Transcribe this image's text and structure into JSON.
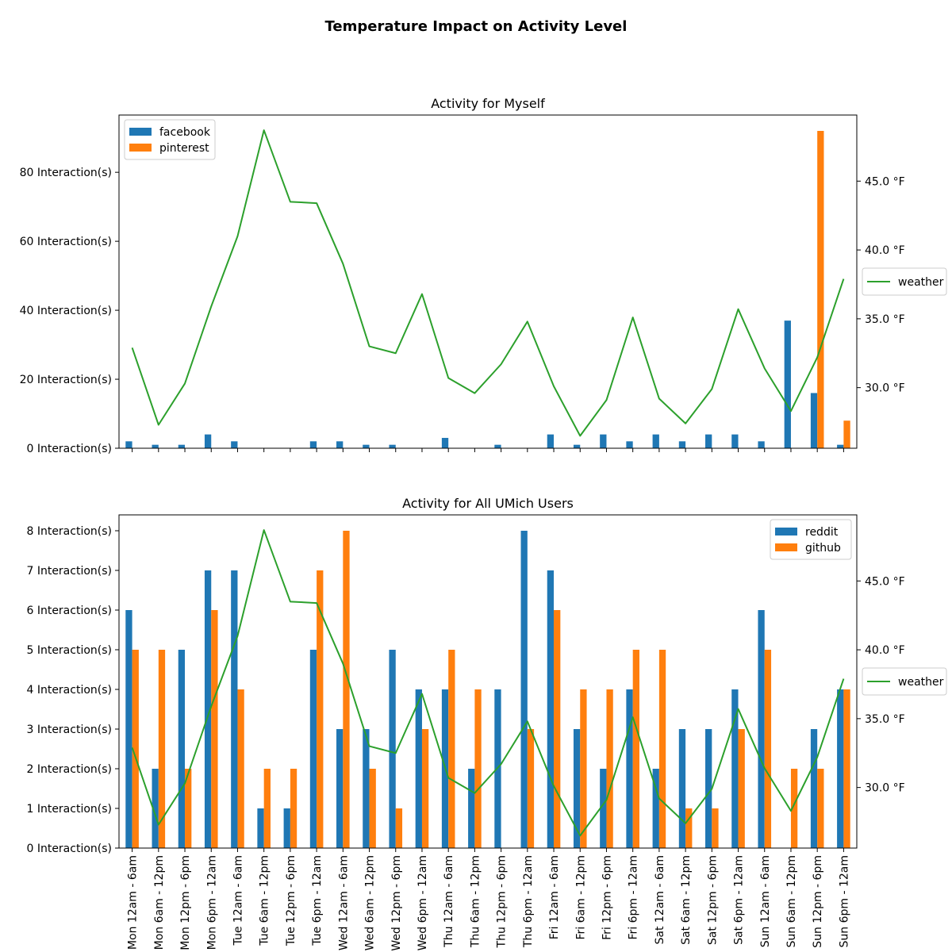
{
  "title": "Temperature Impact on Activity Level",
  "x_categories": [
    "Mon 12am - 6am",
    "Mon 6am - 12pm",
    "Mon 12pm - 6pm",
    "Mon 6pm - 12am",
    "Tue 12am - 6am",
    "Tue 6am - 12pm",
    "Tue 12pm - 6pm",
    "Tue 6pm - 12am",
    "Wed 12am - 6am",
    "Wed 6am - 12pm",
    "Wed 12pm - 6pm",
    "Wed 6pm - 12am",
    "Thu 12am - 6am",
    "Thu 6am - 12pm",
    "Thu 12pm - 6pm",
    "Thu 6pm - 12am",
    "Fri 12am - 6am",
    "Fri 6am - 12pm",
    "Fri 12pm - 6pm",
    "Fri 6pm - 12am",
    "Sat 12am - 6am",
    "Sat 6am - 12pm",
    "Sat 12pm - 6pm",
    "Sat 6pm - 12am",
    "Sun 12am - 6am",
    "Sun 6am - 12pm",
    "Sun 12pm - 6pm",
    "Sun 6pm - 12am"
  ],
  "colors": {
    "series1": "#1f77b4",
    "series2": "#ff7f0e",
    "weather": "#2ca02c"
  },
  "chart_data": [
    {
      "type": "bar",
      "title": "Activity for Myself",
      "ylim": [
        0,
        96.6
      ],
      "yticks": [
        0,
        20,
        40,
        60,
        80
      ],
      "ytick_suffix": " Interaction(s)",
      "legend_position": "upper-left",
      "series": [
        {
          "name": "facebook",
          "values": [
            2,
            1,
            1,
            4,
            2,
            0,
            0,
            2,
            2,
            1,
            1,
            0,
            3,
            0,
            1,
            0,
            4,
            1,
            4,
            2,
            4,
            2,
            4,
            4,
            2,
            37,
            16,
            1
          ]
        },
        {
          "name": "pinterest",
          "values": [
            0,
            0,
            0,
            0,
            0,
            0,
            0,
            0,
            0,
            0,
            0,
            0,
            0,
            0,
            0,
            0,
            0,
            0,
            0,
            0,
            0,
            0,
            0,
            0,
            0,
            0,
            92,
            8
          ]
        }
      ],
      "secondary_axis": {
        "type": "line",
        "ylim": [
          25.6,
          49.8
        ],
        "yticks": [
          30.0,
          35.0,
          40.0,
          45.0
        ],
        "ytick_labels": [
          "30.0 °F",
          "35.0 °F",
          "40.0 °F",
          "45.0 °F"
        ],
        "legend_position": "center-right-outside",
        "series": {
          "name": "weather",
          "values": [
            32.9,
            27.3,
            30.3,
            35.9,
            41.0,
            48.7,
            43.5,
            43.4,
            39.0,
            33.0,
            32.5,
            36.8,
            30.7,
            29.6,
            31.7,
            34.8,
            30.1,
            26.5,
            29.1,
            35.1,
            29.2,
            27.4,
            29.9,
            35.7,
            31.4,
            28.3,
            32.2,
            37.9
          ]
        }
      }
    },
    {
      "type": "bar",
      "title": "Activity for All UMich Users",
      "ylim": [
        0,
        8.4
      ],
      "yticks": [
        0,
        1,
        2,
        3,
        4,
        5,
        6,
        7,
        8
      ],
      "ytick_suffix": " Interaction(s)",
      "legend_position": "upper-right",
      "series": [
        {
          "name": "reddit",
          "values": [
            6,
            2,
            5,
            7,
            7,
            1,
            1,
            5,
            3,
            3,
            5,
            4,
            4,
            2,
            4,
            8,
            7,
            3,
            2,
            4,
            2,
            3,
            3,
            4,
            6,
            0,
            3,
            4
          ]
        },
        {
          "name": "github",
          "values": [
            5,
            5,
            2,
            6,
            4,
            2,
            2,
            7,
            8,
            2,
            1,
            3,
            5,
            4,
            0,
            3,
            6,
            4,
            4,
            5,
            5,
            1,
            1,
            3,
            5,
            2,
            2,
            4
          ]
        }
      ],
      "secondary_axis": {
        "type": "line",
        "ylim": [
          25.6,
          49.8
        ],
        "yticks": [
          30.0,
          35.0,
          40.0,
          45.0
        ],
        "ytick_labels": [
          "30.0 °F",
          "35.0 °F",
          "40.0 °F",
          "45.0 °F"
        ],
        "legend_position": "center-right-outside",
        "series": {
          "name": "weather",
          "values": [
            32.9,
            27.3,
            30.3,
            35.9,
            41.0,
            48.7,
            43.5,
            43.4,
            39.0,
            33.0,
            32.5,
            36.8,
            30.7,
            29.6,
            31.7,
            34.8,
            30.1,
            26.5,
            29.1,
            35.1,
            29.2,
            27.4,
            29.9,
            35.7,
            31.4,
            28.3,
            32.2,
            37.9
          ]
        }
      }
    }
  ]
}
